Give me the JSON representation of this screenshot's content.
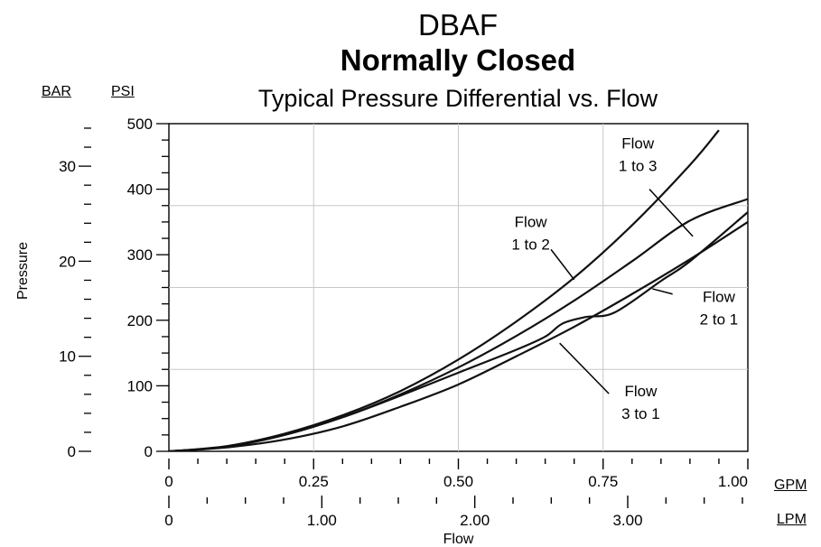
{
  "chart_data": {
    "type": "line",
    "title": "DBAF",
    "subtitle": "Normally Closed",
    "subtitle2": "Typical Pressure Differential vs. Flow",
    "xlabel": "Flow",
    "ylabel": "Pressure",
    "x_units": {
      "primary": "GPM",
      "secondary": "LPM"
    },
    "y_units": {
      "primary": "PSI",
      "secondary": "BAR"
    },
    "xlim": [
      0,
      1.0
    ],
    "ylim": [
      0,
      500
    ],
    "x_ticks": [
      "0",
      "0.25",
      "0.50",
      "0.75",
      "1.00"
    ],
    "x_ticks_secondary": [
      "0",
      "1.00",
      "2.00",
      "3.00"
    ],
    "y_ticks": [
      "0",
      "100",
      "200",
      "300",
      "400",
      "500"
    ],
    "y_ticks_secondary": [
      "0",
      "10",
      "20",
      "30"
    ],
    "grid": true,
    "series": [
      {
        "name": "Flow\n1 to 2",
        "x": [
          0,
          0.1,
          0.2,
          0.3,
          0.4,
          0.5,
          0.6,
          0.7,
          0.8,
          0.9,
          0.95
        ],
        "y": [
          0,
          8,
          27,
          55,
          92,
          140,
          198,
          265,
          345,
          437,
          490
        ]
      },
      {
        "name": "Flow\n1 to 3",
        "x": [
          0,
          0.1,
          0.2,
          0.3,
          0.4,
          0.5,
          0.6,
          0.7,
          0.8,
          0.9,
          1.0
        ],
        "y": [
          0,
          7,
          25,
          52,
          87,
          128,
          176,
          230,
          290,
          352,
          385
        ]
      },
      {
        "name": "Flow\n2 to 1",
        "x": [
          0,
          0.1,
          0.2,
          0.3,
          0.4,
          0.5,
          0.6,
          0.65,
          0.68,
          0.72,
          0.77,
          0.85,
          0.9,
          1.0
        ],
        "y": [
          0,
          7,
          25,
          52,
          85,
          120,
          155,
          175,
          195,
          205,
          212,
          260,
          290,
          365
        ]
      },
      {
        "name": "Flow\n3 to 1",
        "x": [
          0,
          0.1,
          0.2,
          0.3,
          0.4,
          0.5,
          0.6,
          0.7,
          0.8,
          0.9,
          1.0
        ],
        "y": [
          0,
          6,
          18,
          38,
          68,
          102,
          145,
          190,
          240,
          293,
          350
        ]
      }
    ],
    "annotations": [
      {
        "text": [
          "Flow",
          "1 to 2"
        ],
        "target": "Flow\n1 to 2"
      },
      {
        "text": [
          "Flow",
          "1 to 3"
        ],
        "target": "Flow\n1 to 3"
      },
      {
        "text": [
          "Flow",
          "2 to 1"
        ],
        "target": "Flow\n2 to 1"
      },
      {
        "text": [
          "Flow",
          "3 to 1"
        ],
        "target": "Flow\n3 to 1"
      }
    ]
  }
}
